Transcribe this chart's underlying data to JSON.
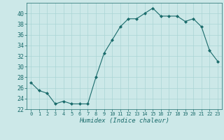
{
  "x": [
    0,
    1,
    2,
    3,
    4,
    5,
    6,
    7,
    8,
    9,
    10,
    11,
    12,
    13,
    14,
    15,
    16,
    17,
    18,
    19,
    20,
    21,
    22,
    23
  ],
  "y": [
    27,
    25.5,
    25,
    23,
    23.5,
    23,
    23,
    23,
    28,
    32.5,
    35,
    37.5,
    39,
    39,
    40,
    41,
    39.5,
    39.5,
    39.5,
    38.5,
    39,
    37.5,
    33,
    31
  ],
  "line_color": "#1a6b6b",
  "marker_color": "#1a6b6b",
  "bg_color": "#cce8e8",
  "xlabel": "Humidex (Indice chaleur)",
  "ylim": [
    22,
    42
  ],
  "xlim": [
    -0.5,
    23.5
  ],
  "yticks": [
    22,
    24,
    26,
    28,
    30,
    32,
    34,
    36,
    38,
    40
  ],
  "xticks": [
    0,
    1,
    2,
    3,
    4,
    5,
    6,
    7,
    8,
    9,
    10,
    11,
    12,
    13,
    14,
    15,
    16,
    17,
    18,
    19,
    20,
    21,
    22,
    23
  ],
  "tick_color": "#1a6b6b",
  "grid_color": "#aad4d4",
  "xlabel_color": "#1a6b6b"
}
